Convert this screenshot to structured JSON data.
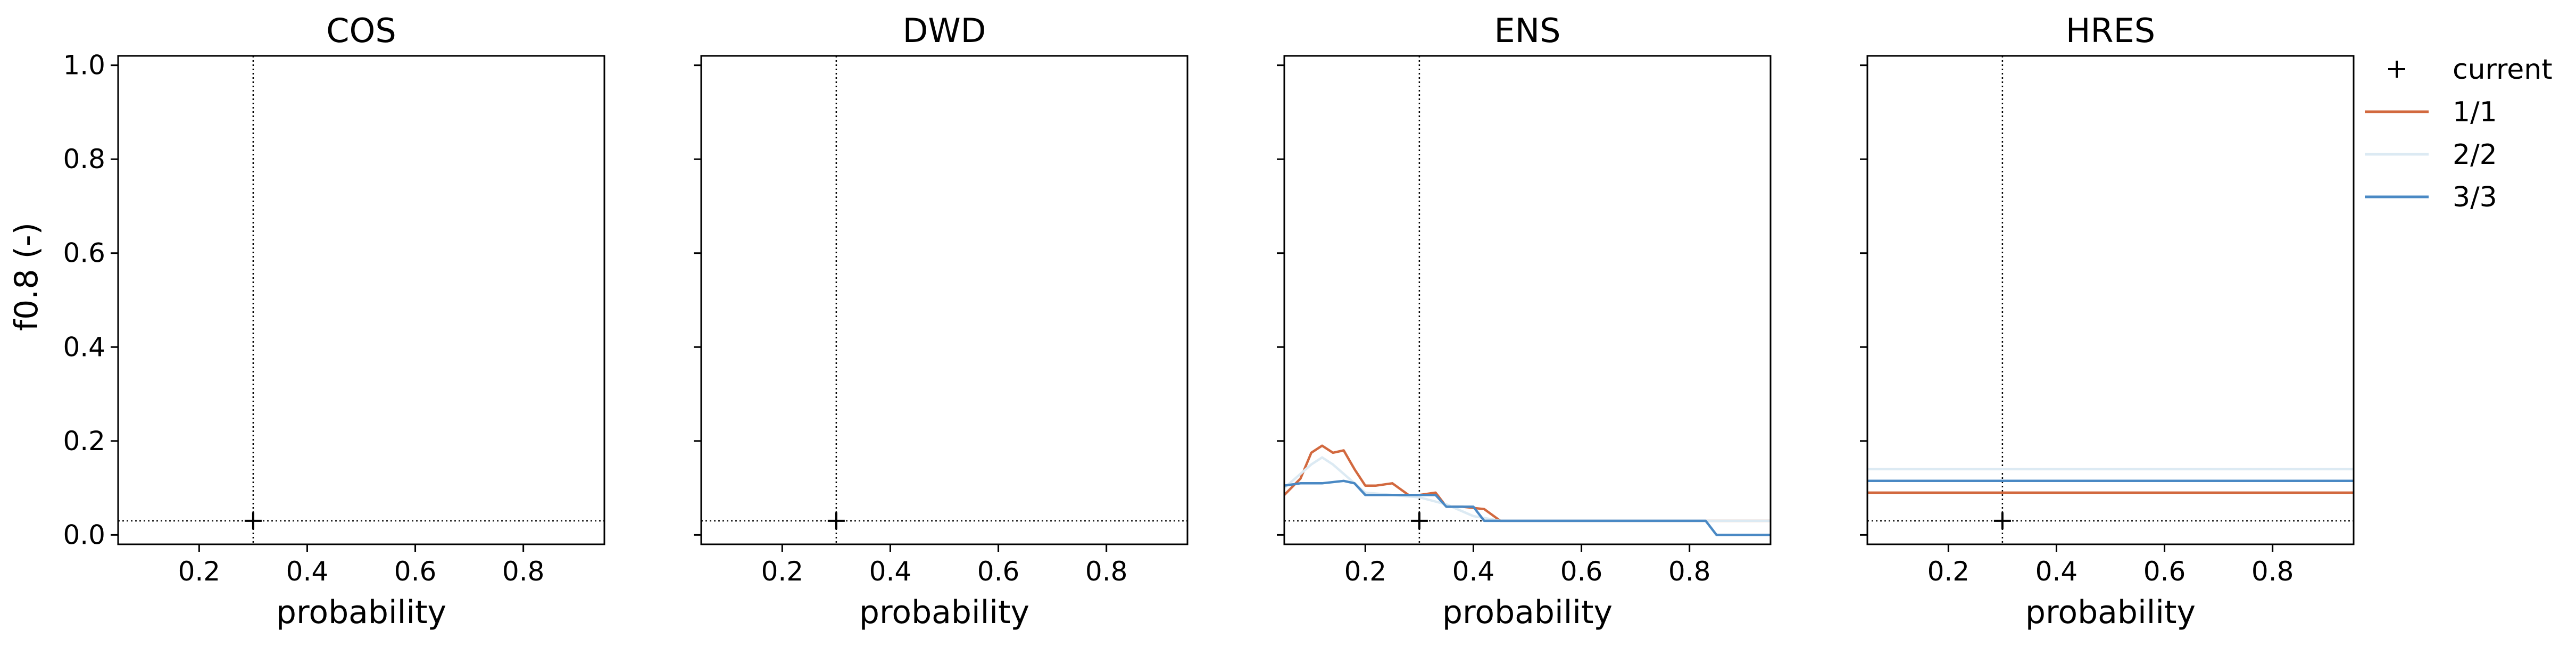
{
  "figure": {
    "ylabel": "f0.8 (-)",
    "xlabel": "probability",
    "colors": {
      "series_1_1": "#d2693f",
      "series_2_2": "#dceaf3",
      "series_3_3": "#4a89c4",
      "reference": "#000000"
    }
  },
  "legend": {
    "placement": "right of panels, top",
    "entries": [
      {
        "label": "current",
        "marker": "plus",
        "color": "#000000"
      },
      {
        "label": "1/1",
        "marker": "line",
        "color": "#d2693f"
      },
      {
        "label": "2/2",
        "marker": "line",
        "color": "#dceaf3"
      },
      {
        "label": "3/3",
        "marker": "line",
        "color": "#4a89c4"
      }
    ]
  },
  "chart_data": [
    {
      "type": "line",
      "title": "COS",
      "xlabel": "probability",
      "ylabel": "f0.8 (-)",
      "xlim": [
        0.05,
        0.95
      ],
      "ylim": [
        -0.02,
        1.02
      ],
      "xticks": [
        0.2,
        0.4,
        0.6,
        0.8
      ],
      "yticks": [
        0.0,
        0.2,
        0.4,
        0.6,
        0.8,
        1.0
      ],
      "current": {
        "x": 0.3,
        "y": 0.03
      },
      "series": []
    },
    {
      "type": "line",
      "title": "DWD",
      "xlabel": "probability",
      "xlim": [
        0.05,
        0.95
      ],
      "ylim": [
        -0.02,
        1.02
      ],
      "xticks": [
        0.2,
        0.4,
        0.6,
        0.8
      ],
      "yticks": [
        0.0,
        0.2,
        0.4,
        0.6,
        0.8,
        1.0
      ],
      "current": {
        "x": 0.3,
        "y": 0.03
      },
      "series": []
    },
    {
      "type": "line",
      "title": "ENS",
      "xlabel": "probability",
      "xlim": [
        0.05,
        0.95
      ],
      "ylim": [
        -0.02,
        1.02
      ],
      "xticks": [
        0.2,
        0.4,
        0.6,
        0.8
      ],
      "yticks": [
        0.0,
        0.2,
        0.4,
        0.6,
        0.8,
        1.0
      ],
      "current": {
        "x": 0.3,
        "y": 0.03
      },
      "series": [
        {
          "name": "1/1",
          "color": "#d2693f",
          "x": [
            0.05,
            0.08,
            0.1,
            0.12,
            0.14,
            0.16,
            0.18,
            0.2,
            0.22,
            0.25,
            0.28,
            0.3,
            0.33,
            0.35,
            0.38,
            0.42,
            0.45,
            0.5,
            0.6,
            0.7,
            0.8,
            0.83,
            0.86,
            0.95
          ],
          "y": [
            0.085,
            0.12,
            0.175,
            0.19,
            0.175,
            0.18,
            0.14,
            0.105,
            0.105,
            0.11,
            0.085,
            0.085,
            0.09,
            0.06,
            0.06,
            0.055,
            0.03,
            0.03,
            0.03,
            0.03,
            0.03,
            0.03,
            0.03,
            0.03
          ]
        },
        {
          "name": "2/2",
          "color": "#dceaf3",
          "x": [
            0.05,
            0.08,
            0.1,
            0.12,
            0.14,
            0.16,
            0.18,
            0.2,
            0.25,
            0.3,
            0.35,
            0.4,
            0.45,
            0.6,
            0.8,
            0.95
          ],
          "y": [
            0.1,
            0.13,
            0.15,
            0.165,
            0.15,
            0.13,
            0.11,
            0.09,
            0.085,
            0.08,
            0.065,
            0.04,
            0.03,
            0.03,
            0.03,
            0.03
          ]
        },
        {
          "name": "3/3",
          "color": "#4a89c4",
          "x": [
            0.05,
            0.08,
            0.12,
            0.16,
            0.18,
            0.2,
            0.25,
            0.3,
            0.33,
            0.35,
            0.38,
            0.4,
            0.42,
            0.6,
            0.7,
            0.8,
            0.83,
            0.85,
            0.95
          ],
          "y": [
            0.105,
            0.11,
            0.11,
            0.115,
            0.11,
            0.085,
            0.085,
            0.085,
            0.085,
            0.06,
            0.06,
            0.06,
            0.03,
            0.03,
            0.03,
            0.03,
            0.03,
            0.0,
            0.0
          ]
        }
      ]
    },
    {
      "type": "line",
      "title": "HRES",
      "xlabel": "probability",
      "xlim": [
        0.05,
        0.95
      ],
      "ylim": [
        -0.02,
        1.02
      ],
      "xticks": [
        0.2,
        0.4,
        0.6,
        0.8
      ],
      "yticks": [
        0.0,
        0.2,
        0.4,
        0.6,
        0.8,
        1.0
      ],
      "current": {
        "x": 0.3,
        "y": 0.03
      },
      "series": [
        {
          "name": "1/1",
          "color": "#d2693f",
          "x": [
            0.05,
            0.95
          ],
          "y": [
            0.09,
            0.09
          ]
        },
        {
          "name": "2/2",
          "color": "#dceaf3",
          "x": [
            0.05,
            0.95
          ],
          "y": [
            0.14,
            0.14
          ]
        },
        {
          "name": "3/3",
          "color": "#4a89c4",
          "x": [
            0.05,
            0.95
          ],
          "y": [
            0.115,
            0.115
          ]
        }
      ]
    }
  ]
}
